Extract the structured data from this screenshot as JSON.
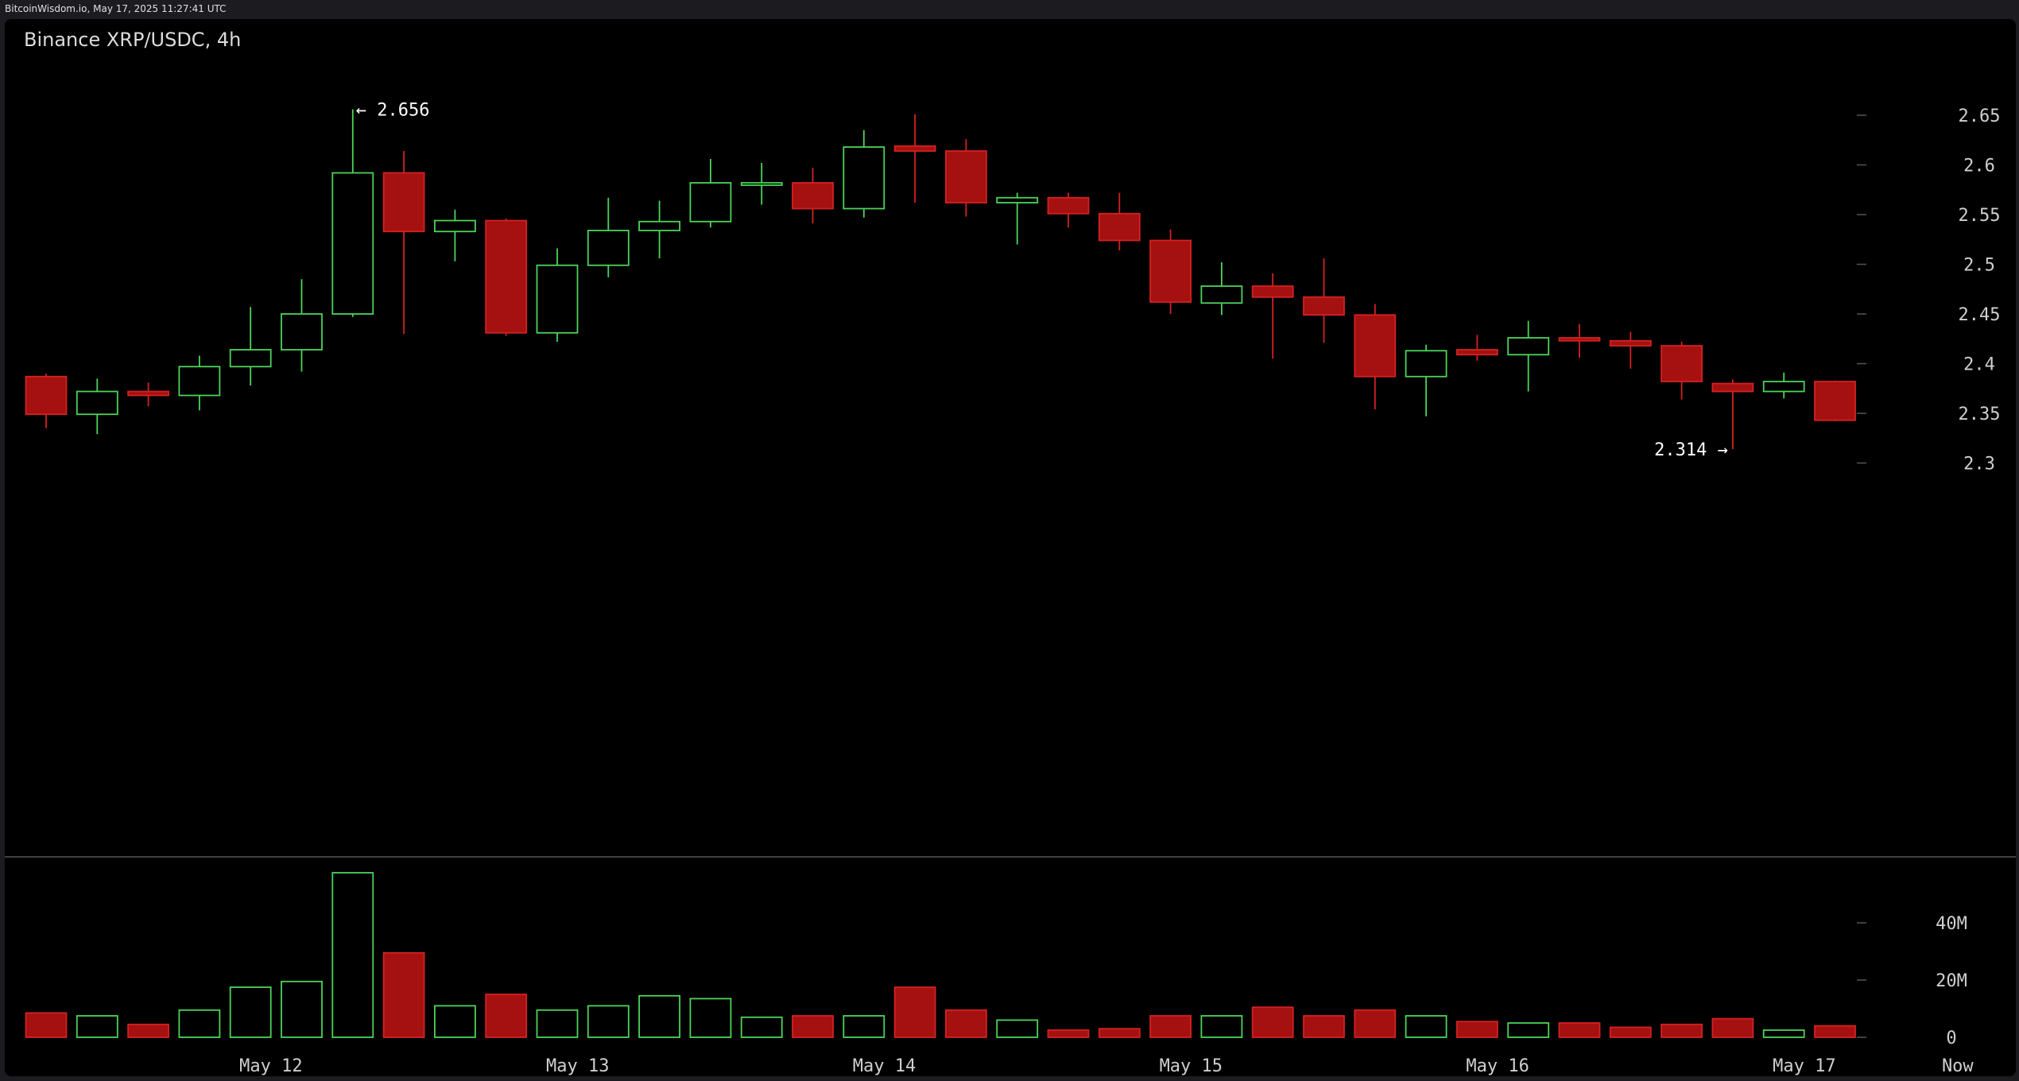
{
  "header": {
    "source": "BitcoinWisdom.io, May 17, 2025 11:27:41 UTC"
  },
  "chart_data": {
    "type": "candlestick",
    "title": "Binance XRP/USDC, 4h",
    "price_axis": {
      "min": 2.28,
      "max": 2.68,
      "ticks": [
        "2.65",
        "2.6",
        "2.55",
        "2.5",
        "2.45",
        "2.4",
        "2.35",
        "2.3"
      ],
      "tick_values": [
        2.65,
        2.6,
        2.55,
        2.5,
        2.45,
        2.4,
        2.35,
        2.3
      ]
    },
    "volume_axis": {
      "max": 60,
      "unit": "M",
      "ticks": [
        "40M",
        "20M",
        "0"
      ],
      "tick_values": [
        40,
        20,
        0
      ]
    },
    "x_labels": [
      "May 12",
      "May 13",
      "May 14",
      "May 15",
      "May 16",
      "May 17",
      "Now"
    ],
    "x_label_index": [
      4.4,
      10.4,
      16.4,
      22.4,
      28.4,
      34.4,
      37.4
    ],
    "annotations": [
      {
        "text": "← 2.656",
        "index": 6,
        "price": 2.656,
        "side": "right"
      },
      {
        "text": "2.314 →",
        "index": 33,
        "price": 2.314,
        "side": "left"
      }
    ],
    "colors": {
      "up": "#4cd35a",
      "down": "#a51010",
      "down_edge": "#d32222",
      "grid": "#555555",
      "axis_text": "#cfcfcf"
    },
    "candles": [
      {
        "o": 2.387,
        "h": 2.39,
        "l": 2.335,
        "c": 2.349,
        "v": 8.5
      },
      {
        "o": 2.349,
        "h": 2.385,
        "l": 2.329,
        "c": 2.372,
        "v": 7.5
      },
      {
        "o": 2.372,
        "h": 2.381,
        "l": 2.357,
        "c": 2.368,
        "v": 4.5
      },
      {
        "o": 2.368,
        "h": 2.408,
        "l": 2.353,
        "c": 2.397,
        "v": 9.5
      },
      {
        "o": 2.397,
        "h": 2.457,
        "l": 2.378,
        "c": 2.414,
        "v": 17.5
      },
      {
        "o": 2.414,
        "h": 2.485,
        "l": 2.392,
        "c": 2.45,
        "v": 19.5
      },
      {
        "o": 2.45,
        "h": 2.656,
        "l": 2.447,
        "c": 2.592,
        "v": 57.5
      },
      {
        "o": 2.592,
        "h": 2.614,
        "l": 2.43,
        "c": 2.533,
        "v": 29.5
      },
      {
        "o": 2.533,
        "h": 2.555,
        "l": 2.503,
        "c": 2.544,
        "v": 11.0
      },
      {
        "o": 2.544,
        "h": 2.546,
        "l": 2.428,
        "c": 2.431,
        "v": 15.0
      },
      {
        "o": 2.431,
        "h": 2.516,
        "l": 2.422,
        "c": 2.499,
        "v": 9.5
      },
      {
        "o": 2.499,
        "h": 2.567,
        "l": 2.487,
        "c": 2.534,
        "v": 11.0
      },
      {
        "o": 2.534,
        "h": 2.564,
        "l": 2.506,
        "c": 2.543,
        "v": 14.5
      },
      {
        "o": 2.543,
        "h": 2.606,
        "l": 2.537,
        "c": 2.582,
        "v": 13.5
      },
      {
        "o": 2.58,
        "h": 2.602,
        "l": 2.56,
        "c": 2.582,
        "v": 7.0
      },
      {
        "o": 2.582,
        "h": 2.597,
        "l": 2.541,
        "c": 2.556,
        "v": 7.5
      },
      {
        "o": 2.556,
        "h": 2.635,
        "l": 2.547,
        "c": 2.618,
        "v": 7.5
      },
      {
        "o": 2.619,
        "h": 2.651,
        "l": 2.562,
        "c": 2.614,
        "v": 17.5
      },
      {
        "o": 2.614,
        "h": 2.626,
        "l": 2.548,
        "c": 2.562,
        "v": 9.5
      },
      {
        "o": 2.562,
        "h": 2.572,
        "l": 2.52,
        "c": 2.567,
        "v": 6.0
      },
      {
        "o": 2.567,
        "h": 2.572,
        "l": 2.537,
        "c": 2.551,
        "v": 2.5
      },
      {
        "o": 2.551,
        "h": 2.572,
        "l": 2.514,
        "c": 2.524,
        "v": 3.0
      },
      {
        "o": 2.524,
        "h": 2.535,
        "l": 2.45,
        "c": 2.462,
        "v": 7.5
      },
      {
        "o": 2.461,
        "h": 2.502,
        "l": 2.449,
        "c": 2.478,
        "v": 7.5
      },
      {
        "o": 2.478,
        "h": 2.491,
        "l": 2.405,
        "c": 2.467,
        "v": 10.5
      },
      {
        "o": 2.467,
        "h": 2.506,
        "l": 2.421,
        "c": 2.449,
        "v": 7.5
      },
      {
        "o": 2.449,
        "h": 2.46,
        "l": 2.354,
        "c": 2.387,
        "v": 9.5
      },
      {
        "o": 2.387,
        "h": 2.419,
        "l": 2.347,
        "c": 2.413,
        "v": 7.5
      },
      {
        "o": 2.414,
        "h": 2.429,
        "l": 2.403,
        "c": 2.409,
        "v": 5.5
      },
      {
        "o": 2.409,
        "h": 2.443,
        "l": 2.372,
        "c": 2.426,
        "v": 5.0
      },
      {
        "o": 2.426,
        "h": 2.44,
        "l": 2.406,
        "c": 2.423,
        "v": 5.0
      },
      {
        "o": 2.423,
        "h": 2.432,
        "l": 2.395,
        "c": 2.418,
        "v": 3.5
      },
      {
        "o": 2.418,
        "h": 2.422,
        "l": 2.364,
        "c": 2.382,
        "v": 4.5
      },
      {
        "o": 2.38,
        "h": 2.384,
        "l": 2.314,
        "c": 2.372,
        "v": 6.5
      },
      {
        "o": 2.372,
        "h": 2.391,
        "l": 2.365,
        "c": 2.382,
        "v": 2.5
      },
      {
        "o": 2.382,
        "h": 2.383,
        "l": 2.342,
        "c": 2.343,
        "v": 4.0
      }
    ]
  }
}
